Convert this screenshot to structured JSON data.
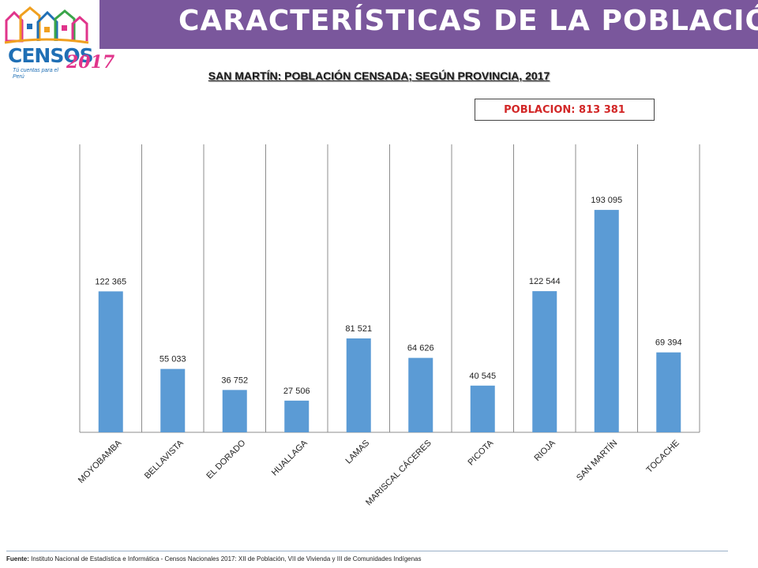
{
  "header": {
    "title": "CARACTERÍSTICAS DE LA POBLACIÓN",
    "logo_text": "CENSOS",
    "logo_year": "2017",
    "logo_tagline": "Tú cuentas para el Perú"
  },
  "population_box": {
    "label": "POBLACION:",
    "value": "813 381"
  },
  "chart_data": {
    "type": "bar",
    "title": "SAN MARTÍN: POBLACIÓN CENSADA; SEGÚN PROVINCIA, 2017",
    "categories": [
      "MOYOBAMBA",
      "BELLAVISTA",
      "EL DORADO",
      "HUALLAGA",
      "LAMAS",
      "MARISCAL CÁCERES",
      "PICOTA",
      "RIOJA",
      "SAN MARTÍN",
      "TOCACHE"
    ],
    "values": [
      122365,
      55033,
      36752,
      27506,
      81521,
      64626,
      40545,
      122544,
      193095,
      69394
    ],
    "data_labels": [
      "122 365",
      "55 033",
      "36 752",
      "27 506",
      "81 521",
      "64 626",
      "40 545",
      "122 544",
      "193 095",
      "69 394"
    ],
    "ylim": [
      0,
      250000
    ],
    "grid": "vertical",
    "bar_color": "#5b9bd5"
  },
  "footer": {
    "label": "Fuente:",
    "text": "Instituto Nacional de Estadística e Informática - Censos Nacionales 2017: XII de Población, VII de Vivienda y III de Comunidades Indígenas"
  }
}
